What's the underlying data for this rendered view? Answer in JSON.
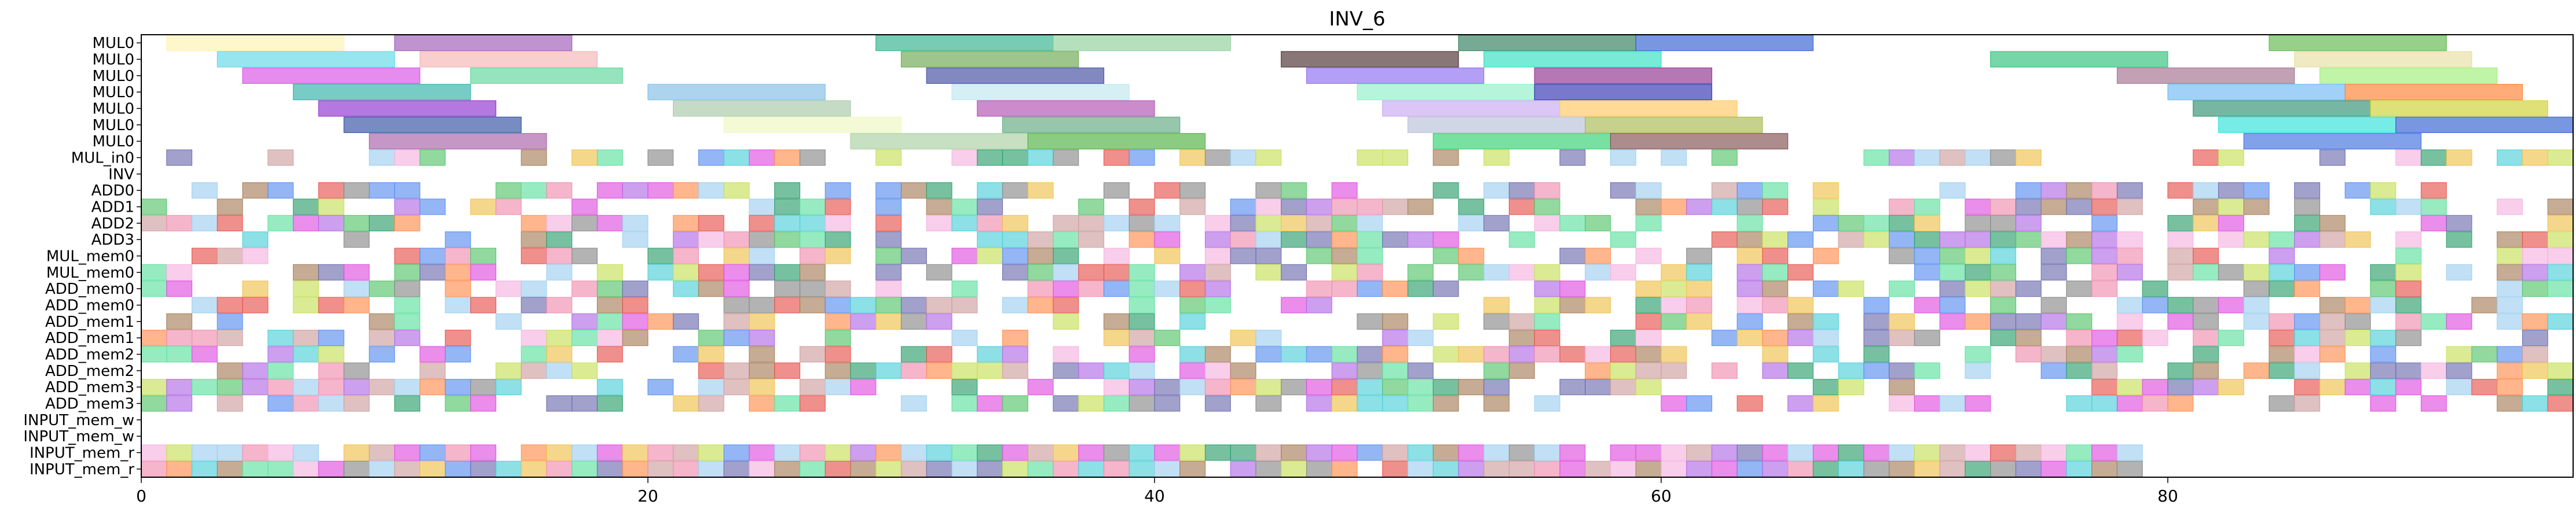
{
  "chart_data": {
    "type": "gantt",
    "title": "INV_6",
    "xlabel": "",
    "ylabel": "",
    "xlim": [
      0,
      96
    ],
    "xticks": [
      0,
      20,
      40,
      60,
      80
    ],
    "grid": false,
    "rows": [
      "MUL0",
      "MUL0",
      "MUL0",
      "MUL0",
      "MUL0",
      "MUL0",
      "MUL0",
      "MUL_in0",
      "INV",
      "ADD0",
      "ADD1",
      "ADD2",
      "ADD3",
      "MUL_mem0",
      "MUL_mem0",
      "ADD_mem0",
      "ADD_mem0",
      "ADD_mem1",
      "ADD_mem1",
      "ADD_mem2",
      "ADD_mem2",
      "ADD_mem3",
      "ADD_mem3",
      "INPUT_mem_w",
      "INPUT_mem_w",
      "INPUT_mem_r",
      "INPUT_mem_r"
    ],
    "tasks": [
      {
        "row": 0,
        "start": 1,
        "end": 8,
        "color": "#fff3b0"
      },
      {
        "row": 0,
        "start": 10,
        "end": 17,
        "color": "#9b59b6"
      },
      {
        "row": 0,
        "start": 29,
        "end": 36,
        "color": "#2eb08a"
      },
      {
        "row": 0,
        "start": 36,
        "end": 43,
        "color": "#8fcf9a"
      },
      {
        "row": 0,
        "start": 52,
        "end": 59,
        "color": "#2e7d5b"
      },
      {
        "row": 0,
        "start": 59,
        "end": 66,
        "color": "#2f5fd0"
      },
      {
        "row": 0,
        "start": 84,
        "end": 91,
        "color": "#5cb84a"
      },
      {
        "row": 1,
        "start": 3,
        "end": 10,
        "color": "#5fd9e6"
      },
      {
        "row": 1,
        "start": 11,
        "end": 18,
        "color": "#f5b4b4"
      },
      {
        "row": 1,
        "start": 30,
        "end": 37,
        "color": "#6aa84f"
      },
      {
        "row": 1,
        "start": 45,
        "end": 52,
        "color": "#4a2c2c"
      },
      {
        "row": 1,
        "start": 53,
        "end": 60,
        "color": "#2ee0c0"
      },
      {
        "row": 1,
        "start": 73,
        "end": 80,
        "color": "#2ec07a"
      },
      {
        "row": 1,
        "start": 85,
        "end": 92,
        "color": "#e6dea0"
      },
      {
        "row": 2,
        "start": 4,
        "end": 11,
        "color": "#d94ee6"
      },
      {
        "row": 2,
        "start": 13,
        "end": 19,
        "color": "#5ed69a"
      },
      {
        "row": 2,
        "start": 31,
        "end": 38,
        "color": "#3f4aa0"
      },
      {
        "row": 2,
        "start": 46,
        "end": 53,
        "color": "#8a6bf0"
      },
      {
        "row": 2,
        "start": 55,
        "end": 62,
        "color": "#8e2f8e"
      },
      {
        "row": 2,
        "start": 78,
        "end": 85,
        "color": "#a36e8e"
      },
      {
        "row": 2,
        "start": 86,
        "end": 93,
        "color": "#9ef07a"
      },
      {
        "row": 3,
        "start": 6,
        "end": 13,
        "color": "#2fb0a8"
      },
      {
        "row": 3,
        "start": 20,
        "end": 27,
        "color": "#7fbde6"
      },
      {
        "row": 3,
        "start": 32,
        "end": 39,
        "color": "#bfe6f0"
      },
      {
        "row": 3,
        "start": 48,
        "end": 55,
        "color": "#8ff0c8"
      },
      {
        "row": 3,
        "start": 55,
        "end": 62,
        "color": "#2f2fb0"
      },
      {
        "row": 3,
        "start": 80,
        "end": 87,
        "color": "#6fb8f5"
      },
      {
        "row": 3,
        "start": 87,
        "end": 94,
        "color": "#ff7f30"
      },
      {
        "row": 4,
        "start": 7,
        "end": 14,
        "color": "#8e2fd0"
      },
      {
        "row": 4,
        "start": 21,
        "end": 28,
        "color": "#a8c8a8"
      },
      {
        "row": 4,
        "start": 33,
        "end": 40,
        "color": "#b04fb0"
      },
      {
        "row": 4,
        "start": 49,
        "end": 56,
        "color": "#c8a8f0"
      },
      {
        "row": 4,
        "start": 56,
        "end": 63,
        "color": "#ffc860"
      },
      {
        "row": 4,
        "start": 81,
        "end": 88,
        "color": "#2e8f70"
      },
      {
        "row": 4,
        "start": 88,
        "end": 95,
        "color": "#d0d030"
      },
      {
        "row": 5,
        "start": 8,
        "end": 15,
        "color": "#2f4fa0"
      },
      {
        "row": 5,
        "start": 23,
        "end": 30,
        "color": "#f0f8c0"
      },
      {
        "row": 5,
        "start": 34,
        "end": 41,
        "color": "#5fa87f"
      },
      {
        "row": 5,
        "start": 50,
        "end": 57,
        "color": "#b8c0d8"
      },
      {
        "row": 5,
        "start": 57,
        "end": 64,
        "color": "#a8b850"
      },
      {
        "row": 5,
        "start": 82,
        "end": 89,
        "color": "#2ee0d8"
      },
      {
        "row": 5,
        "start": 89,
        "end": 96,
        "color": "#2f5fd0"
      },
      {
        "row": 6,
        "start": 9,
        "end": 16,
        "color": "#a85fa8"
      },
      {
        "row": 6,
        "start": 28,
        "end": 35,
        "color": "#a8d0a0"
      },
      {
        "row": 6,
        "start": 35,
        "end": 42,
        "color": "#4fb03f"
      },
      {
        "row": 6,
        "start": 51,
        "end": 58,
        "color": "#2fd06f"
      },
      {
        "row": 6,
        "start": 58,
        "end": 65,
        "color": "#7f4f4f"
      },
      {
        "row": 6,
        "start": 83,
        "end": 90,
        "color": "#3f6fe0"
      }
    ],
    "small_rows": [
      7,
      9,
      10,
      11,
      12,
      13,
      14,
      15,
      16,
      17,
      18,
      19,
      20,
      21,
      22,
      25,
      26
    ],
    "small_seed": [
      7,
      9,
      10,
      11,
      12,
      13,
      14,
      15,
      16,
      17,
      18,
      19,
      20,
      21,
      22,
      25,
      26
    ]
  }
}
